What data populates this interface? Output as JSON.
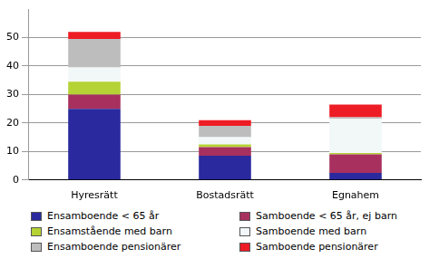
{
  "chart_data": {
    "type": "bar",
    "stacked": true,
    "categories": [
      "Hyresrätt",
      "Bostadsrätt",
      "Egnahem"
    ],
    "series": [
      {
        "name": "Ensamboende < 65 år",
        "color": "#2a2a9e",
        "values": [
          25,
          8.5,
          2.5
        ]
      },
      {
        "name": "Samboende < 65 år, ej barn",
        "color": "#a8305e",
        "values": [
          5,
          3,
          6.5
        ]
      },
      {
        "name": "Ensamstående med barn",
        "color": "#b5d334",
        "values": [
          4.5,
          1,
          0.5
        ]
      },
      {
        "name": "Samboende med barn",
        "color": "#f2f8f8",
        "values": [
          5,
          2.5,
          12
        ]
      },
      {
        "name": "Ensamboende pensionärer",
        "color": "#bdbdbd",
        "values": [
          10,
          4,
          0.5
        ]
      },
      {
        "name": "Samboende pensionärer",
        "color": "#ee1c24",
        "values": [
          2.5,
          2,
          4.5
        ]
      }
    ],
    "ylim": [
      0,
      60
    ],
    "yticks": [
      0,
      10,
      20,
      30,
      40,
      50
    ],
    "grid": true,
    "legend": "bottom"
  }
}
